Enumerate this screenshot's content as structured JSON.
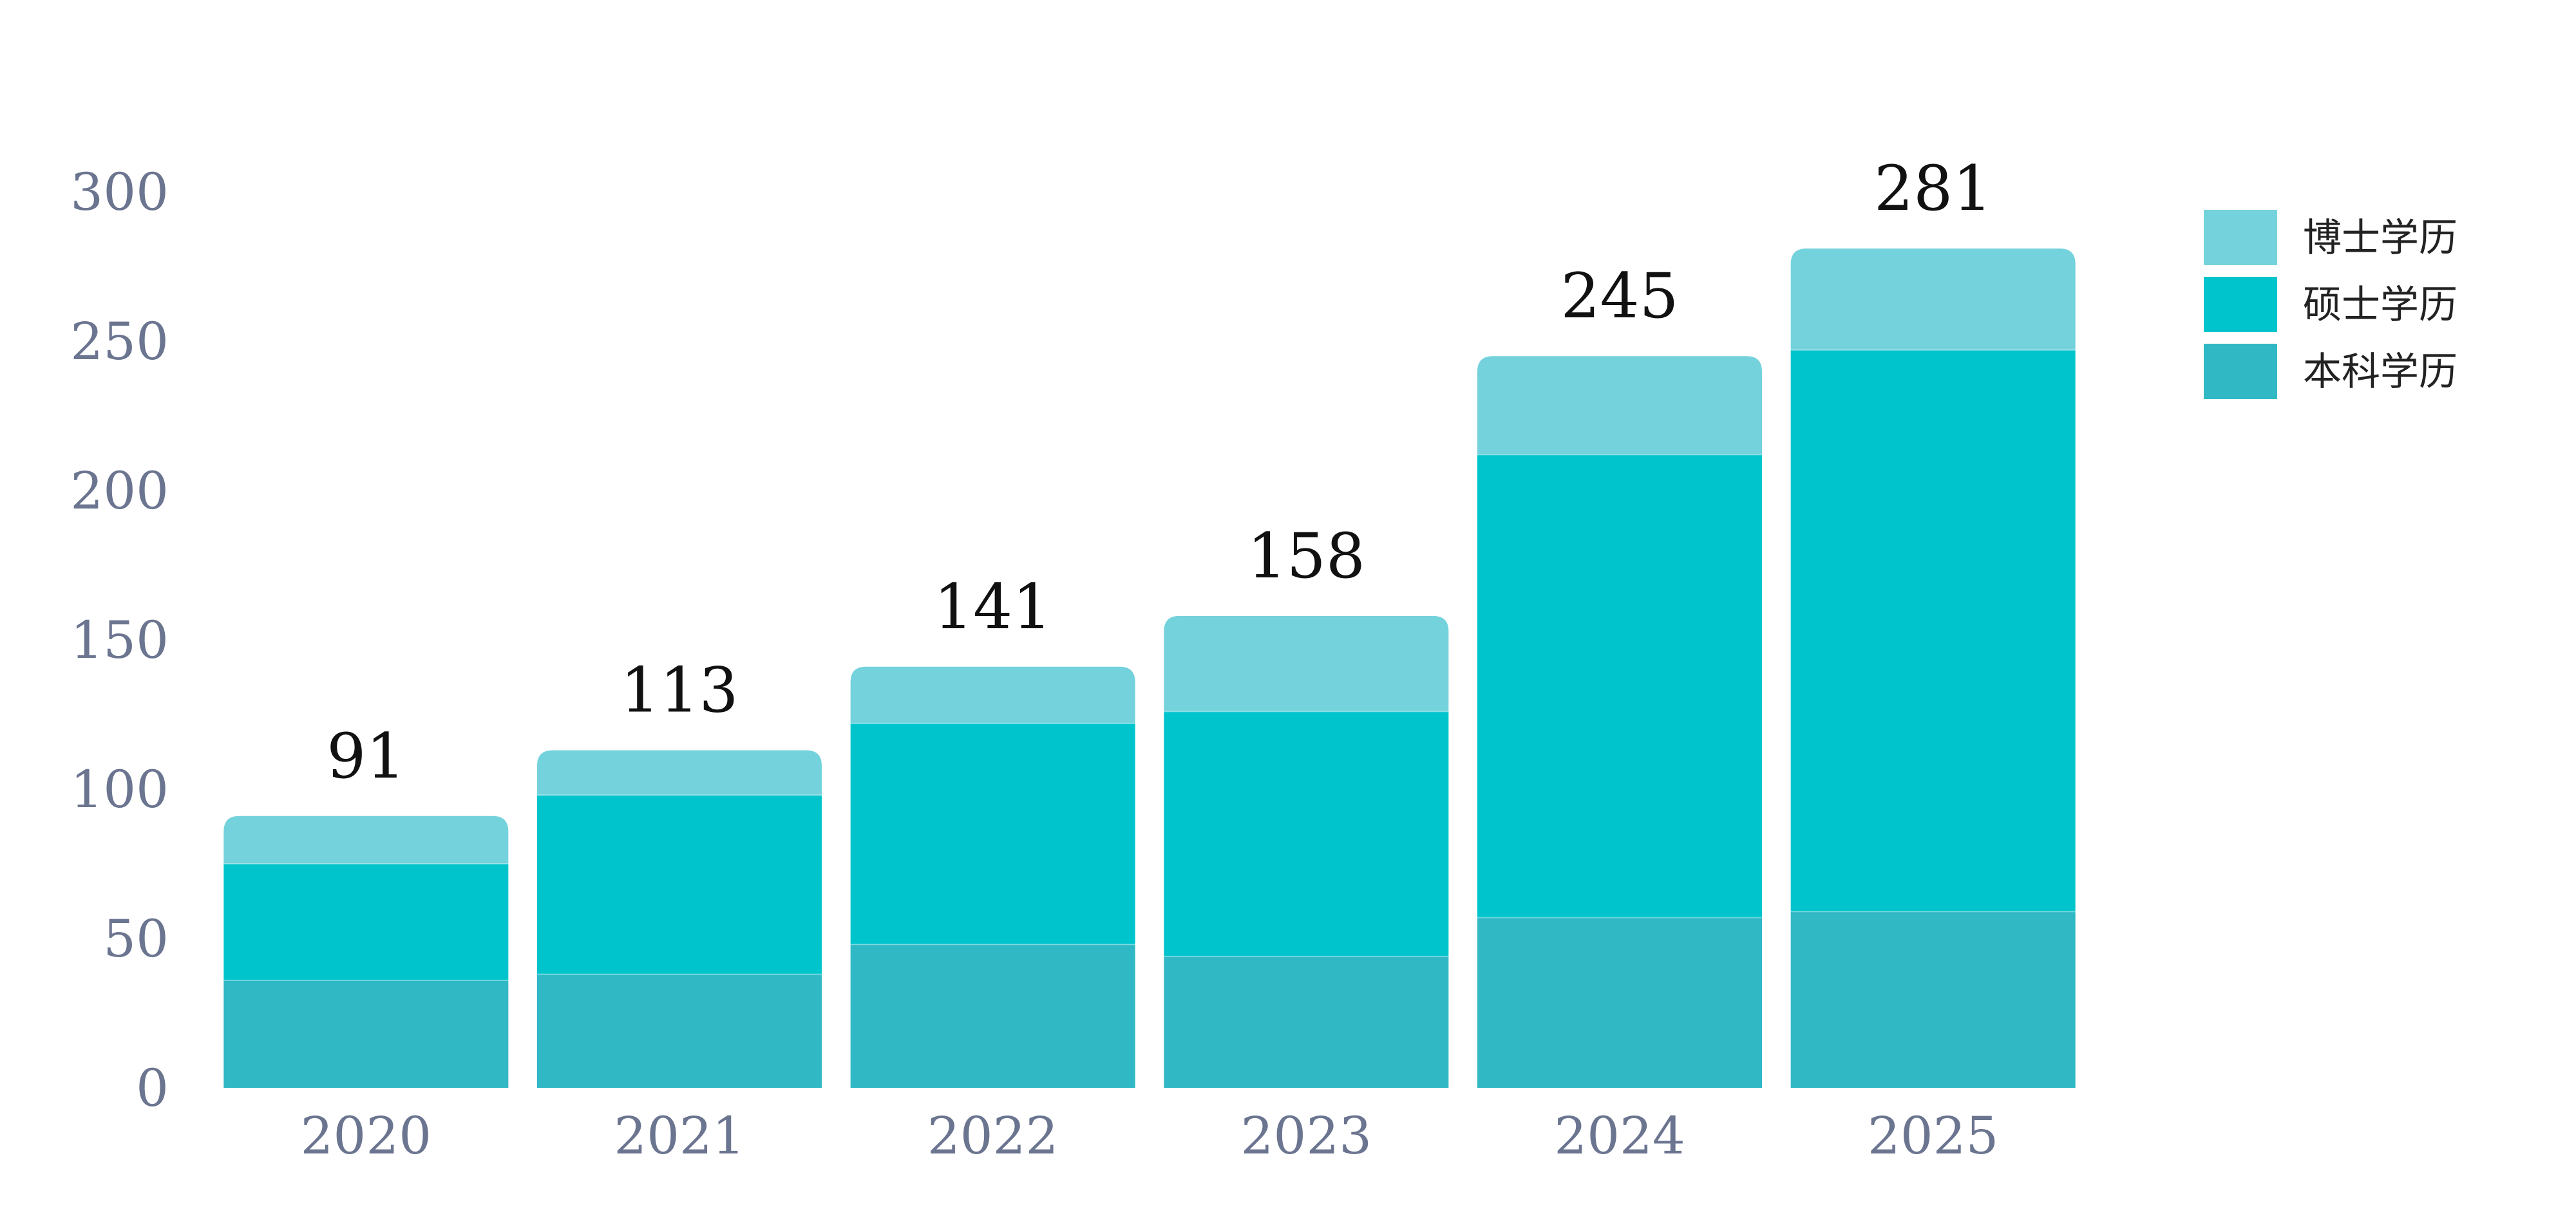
{
  "chart_data": {
    "type": "bar",
    "stacked": true,
    "categories": [
      "2020",
      "2021",
      "2022",
      "2023",
      "2024",
      "2025"
    ],
    "series": [
      {
        "name": "本科学历",
        "color": "#30b8c4",
        "values": [
          36,
          38,
          48,
          44,
          57,
          59
        ]
      },
      {
        "name": "硕士学历",
        "color": "#00c4cc",
        "values": [
          39,
          60,
          74,
          82,
          155,
          188
        ]
      },
      {
        "name": "博士学历",
        "color": "#74d2dc",
        "values": [
          16,
          15,
          19,
          32,
          33,
          34
        ]
      }
    ],
    "totals": [
      91,
      113,
      141,
      158,
      245,
      281
    ],
    "yticks": [
      0,
      50,
      100,
      150,
      200,
      250,
      300
    ],
    "ylim": [
      0,
      300
    ],
    "grid": false,
    "legend_position": "top-right",
    "legend_order": [
      "博士学历",
      "硕士学历",
      "本科学历"
    ],
    "colors": {
      "tick_text": "#6b7590",
      "total_text": "#111111"
    }
  }
}
